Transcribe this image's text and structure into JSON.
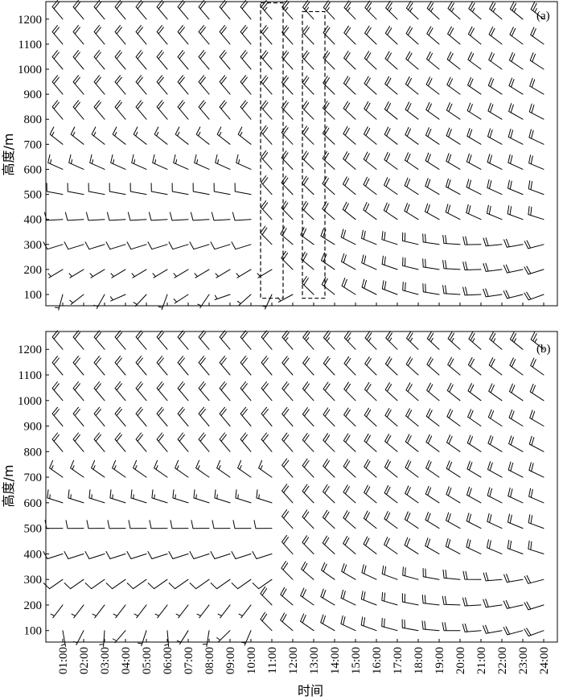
{
  "chart_data": [
    {
      "type": "wind-barb",
      "panel_label": "(a)",
      "xlabel": "时间",
      "ylabel": "高度/m",
      "ylim": [
        55,
        1270
      ],
      "x_ticks": [
        "01:00",
        "02:00",
        "03:00",
        "04:00",
        "05:00",
        "06:00",
        "07:00",
        "08:00",
        "09:00",
        "10:00",
        "11:00",
        "12:00",
        "13:00",
        "14:00",
        "15:00",
        "16:00",
        "17:00",
        "18:00",
        "19:00",
        "20:00",
        "21:00",
        "22:00",
        "23:00",
        "24:00"
      ],
      "y_ticks": [
        100,
        200,
        300,
        400,
        500,
        600,
        700,
        800,
        900,
        1000,
        1100,
        1200
      ],
      "levels": [
        100,
        200,
        300,
        400,
        500,
        600,
        700,
        800,
        900,
        1000,
        1100,
        1200
      ],
      "regime_end_hour": [
        12,
        11,
        10,
        10,
        10,
        10,
        10,
        10,
        10,
        10,
        10,
        10
      ],
      "lower_dir_deg": 225,
      "upper_dir_deg": 320,
      "lower_speed_ms": 3,
      "upper_speed_ms": 16,
      "night_dir_deg": 280,
      "night_speed_ms": 14,
      "highlight_boxes": [
        {
          "x_from": "11:00",
          "x_to": "11:00",
          "y_from": 85,
          "y_to": 1265
        },
        {
          "x_from": "13:00",
          "x_to": "13:00",
          "y_from": 85,
          "y_to": 1230
        }
      ]
    },
    {
      "type": "wind-barb",
      "panel_label": "(b)",
      "xlabel": "时间",
      "ylabel": "高度/m",
      "ylim": [
        55,
        1270
      ],
      "x_ticks": [
        "01:00",
        "02:00",
        "03:00",
        "04:00",
        "05:00",
        "06:00",
        "07:00",
        "08:00",
        "09:00",
        "10:00",
        "11:00",
        "12:00",
        "13:00",
        "14:00",
        "15:00",
        "16:00",
        "17:00",
        "18:00",
        "19:00",
        "20:00",
        "21:00",
        "22:00",
        "23:00",
        "24:00"
      ],
      "y_ticks": [
        100,
        200,
        300,
        400,
        500,
        600,
        700,
        800,
        900,
        1000,
        1100,
        1200
      ],
      "levels": [
        100,
        200,
        300,
        400,
        500,
        600,
        700,
        800,
        900,
        1000,
        1100,
        1200
      ],
      "regime_end_hour": [
        10,
        10,
        11,
        11,
        11,
        11,
        11,
        11,
        11,
        11,
        11,
        11
      ],
      "lower_dir_deg": 200,
      "upper_dir_deg": 320,
      "lower_speed_ms": 3,
      "upper_speed_ms": 16,
      "night_dir_deg": 280,
      "night_speed_ms": 14,
      "highlight_boxes": []
    }
  ]
}
